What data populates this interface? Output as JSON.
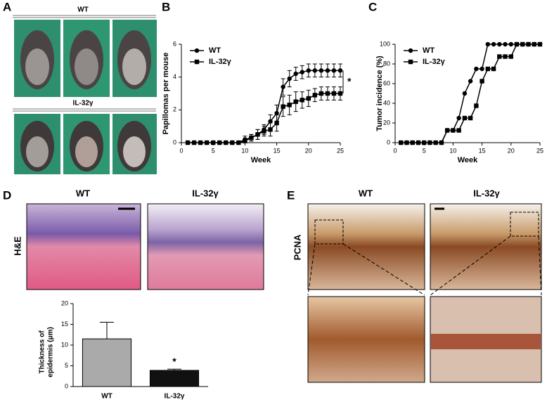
{
  "panels": {
    "a": "A",
    "b": "B",
    "c": "C",
    "d": "D",
    "e": "E"
  },
  "photo_labels": {
    "a_top": "WT",
    "a_bottom": "IL-32γ",
    "d_left": "WT",
    "d_right": "IL-32γ",
    "d_stain": "H&E",
    "e_left": "WT",
    "e_right": "IL-32γ",
    "e_stain": "PCNA"
  },
  "chart_data": [
    {
      "type": "line",
      "ylabel": "Papillomas per mouse",
      "xlabel": "Week",
      "annotation": "*",
      "x": [
        1,
        2,
        3,
        4,
        5,
        6,
        7,
        8,
        9,
        10,
        11,
        12,
        13,
        14,
        15,
        16,
        17,
        18,
        19,
        20,
        21,
        22,
        23,
        24,
        25
      ],
      "xlim": [
        0,
        25
      ],
      "xticks": [
        0,
        5,
        10,
        15,
        20,
        25
      ],
      "ylim": [
        0,
        6
      ],
      "yticks": [
        0,
        2,
        4,
        6
      ],
      "series": [
        {
          "name": "WT",
          "color": "#000000",
          "marker": "circle",
          "values": [
            0,
            0,
            0,
            0,
            0,
            0,
            0,
            0,
            0,
            0.2,
            0.3,
            0.5,
            0.8,
            1.3,
            1.8,
            3.4,
            3.9,
            4.2,
            4.3,
            4.4,
            4.4,
            4.4,
            4.4,
            4.4,
            4.4
          ],
          "errors": [
            0,
            0,
            0,
            0,
            0,
            0,
            0,
            0,
            0,
            0.2,
            0.2,
            0.3,
            0.3,
            0.4,
            0.5,
            0.5,
            0.5,
            0.4,
            0.4,
            0.4,
            0.4,
            0.4,
            0.4,
            0.4,
            0.4
          ]
        },
        {
          "name": "IL-32γ",
          "color": "#000000",
          "marker": "square",
          "values": [
            0,
            0,
            0,
            0,
            0,
            0,
            0,
            0,
            0,
            0.1,
            0.3,
            0.5,
            0.7,
            0.8,
            1.2,
            2.2,
            2.3,
            2.5,
            2.6,
            2.7,
            2.9,
            3.0,
            3.0,
            3.0,
            3.0
          ],
          "errors": [
            0,
            0,
            0,
            0,
            0,
            0,
            0,
            0,
            0,
            0.1,
            0.2,
            0.3,
            0.3,
            0.4,
            0.5,
            0.6,
            0.6,
            0.6,
            0.5,
            0.5,
            0.4,
            0.4,
            0.4,
            0.4,
            0.4
          ]
        }
      ]
    },
    {
      "type": "line",
      "ylabel": "Tumor incidence (%)",
      "xlabel": "Week",
      "x": [
        1,
        2,
        3,
        4,
        5,
        6,
        7,
        8,
        9,
        10,
        11,
        12,
        13,
        14,
        15,
        16,
        17,
        18,
        19,
        20,
        21,
        22,
        23,
        24,
        25
      ],
      "xlim": [
        0,
        25
      ],
      "xticks": [
        0,
        5,
        10,
        15,
        20,
        25
      ],
      "ylim": [
        0,
        100
      ],
      "yticks": [
        0,
        20,
        40,
        60,
        80,
        100
      ],
      "series": [
        {
          "name": "WT",
          "color": "#000000",
          "marker": "circle",
          "values": [
            0,
            0,
            0,
            0,
            0,
            0,
            0,
            0,
            12.5,
            12.5,
            25,
            50,
            62.5,
            75,
            75,
            100,
            100,
            100,
            100,
            100,
            100,
            100,
            100,
            100,
            100
          ]
        },
        {
          "name": "IL-32γ",
          "color": "#000000",
          "marker": "square",
          "values": [
            0,
            0,
            0,
            0,
            0,
            0,
            0,
            0,
            12.5,
            12.5,
            12.5,
            25,
            25,
            37.5,
            62.5,
            75,
            75,
            87.5,
            87.5,
            87.5,
            100,
            100,
            100,
            100,
            100
          ]
        }
      ]
    },
    {
      "type": "bar",
      "ylabel": [
        "Thickness of",
        "epidermis (μm)"
      ],
      "annotation": "*",
      "categories": [
        "WT",
        "IL-32γ"
      ],
      "values": [
        11.5,
        3.9
      ],
      "errors": [
        4.0,
        0.3
      ],
      "colors": [
        "#aaaaaa",
        "#111111"
      ],
      "ylim": [
        0,
        20
      ],
      "yticks": [
        0,
        5,
        10,
        15,
        20
      ]
    }
  ]
}
